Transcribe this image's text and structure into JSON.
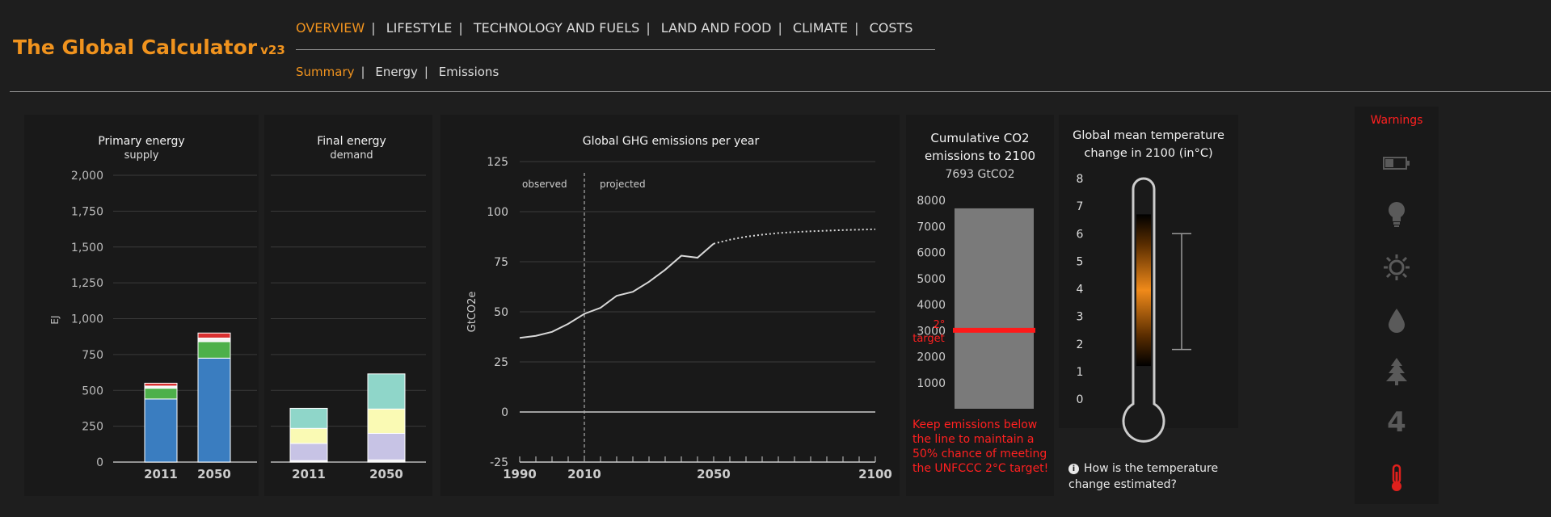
{
  "app": {
    "title": "The Global Calculator",
    "version": "v23"
  },
  "nav": {
    "tabs": [
      {
        "label": "OVERVIEW",
        "active": true
      },
      {
        "label": "LIFESTYLE",
        "active": false
      },
      {
        "label": "TECHNOLOGY AND FUELS",
        "active": false
      },
      {
        "label": "LAND AND FOOD",
        "active": false
      },
      {
        "label": "CLIMATE",
        "active": false
      },
      {
        "label": "COSTS",
        "active": false
      }
    ],
    "subtabs": [
      {
        "label": "Summary",
        "active": true
      },
      {
        "label": "Energy",
        "active": false
      },
      {
        "label": "Emissions",
        "active": false
      }
    ]
  },
  "colors": {
    "accent": "#f0931e",
    "warning": "#ff2020"
  },
  "charts": {
    "primary": {
      "title": "Primary energy",
      "subtitle": "supply",
      "ylabel": "EJ"
    },
    "final": {
      "title": "Final energy",
      "subtitle": "demand"
    },
    "ghg": {
      "title": "Global GHG emissions per year",
      "ylabel": "GtCO2e",
      "observed_label": "observed",
      "projected_label": "projected"
    },
    "cumulative": {
      "title_line1": "Cumulative CO2",
      "title_line2": "emissions to 2100",
      "value_text": "7693 GtCO2",
      "target_label_line1": "2°",
      "target_label_line2": "target"
    },
    "temperature": {
      "title_line1": "Global mean temperature",
      "title_line2": "change in 2100 (in°C)"
    }
  },
  "chart_data": [
    {
      "type": "bar",
      "title": "Primary energy",
      "subtitle": "supply",
      "ylabel": "EJ",
      "categories": [
        "2011",
        "2050"
      ],
      "ylim": [
        0,
        2000
      ],
      "yticks": [
        0,
        250,
        500,
        750,
        1000,
        1250,
        1500,
        1750,
        2000
      ],
      "yticklabels": [
        "0",
        "250",
        "500",
        "750",
        "1,000",
        "1,250",
        "1,500",
        "1,750",
        "2,000"
      ],
      "stacked": true,
      "series": [
        {
          "color": "#3a7dc0",
          "values": [
            440,
            725
          ]
        },
        {
          "color": "#4db04a",
          "values": [
            75,
            115
          ]
        },
        {
          "color": "#f4f4f4",
          "values": [
            15,
            25
          ]
        },
        {
          "color": "#d93030",
          "values": [
            20,
            35
          ]
        }
      ],
      "grid": true
    },
    {
      "type": "bar",
      "title": "Final energy",
      "subtitle": "demand",
      "categories": [
        "2011",
        "2050"
      ],
      "ylim": [
        0,
        2000
      ],
      "stacked": true,
      "series": [
        {
          "color": "#f4f4f4",
          "values": [
            10,
            15
          ]
        },
        {
          "color": "#c7c3e5",
          "values": [
            120,
            185
          ]
        },
        {
          "color": "#fafab4",
          "values": [
            105,
            170
          ]
        },
        {
          "color": "#8fd6c9",
          "values": [
            140,
            245
          ]
        }
      ],
      "grid": true
    },
    {
      "type": "line",
      "title": "Global GHG emissions per year",
      "ylabel": "GtCO2e",
      "xlim": [
        1990,
        2100
      ],
      "ylim": [
        -25,
        125
      ],
      "xticklabels": [
        "1990",
        "2010",
        "2050",
        "2100"
      ],
      "yticklabels": [
        "-25",
        "0",
        "25",
        "50",
        "75",
        "100",
        "125"
      ],
      "annotations": [
        "observed",
        "projected"
      ],
      "series": [
        {
          "style": "solid",
          "x": [
            1990,
            1995,
            2000,
            2005,
            2010,
            2015,
            2020,
            2025,
            2030,
            2035,
            2040,
            2045,
            2050
          ],
          "y": [
            37,
            38,
            40,
            44,
            49,
            52,
            58,
            60,
            65,
            71,
            78,
            77,
            84
          ]
        },
        {
          "style": "dotted",
          "x": [
            2050,
            2055,
            2060,
            2065,
            2070,
            2075,
            2080,
            2085,
            2090,
            2095,
            2100
          ],
          "y": [
            84,
            86,
            87.5,
            88.5,
            89.3,
            89.8,
            90.2,
            90.5,
            90.8,
            91,
            91.2
          ]
        }
      ],
      "grid": true
    },
    {
      "type": "bar",
      "title": "Cumulative CO2 emissions to 2100",
      "categories": [
        "2100"
      ],
      "values": [
        7693
      ],
      "value_label": "7693 GtCO2",
      "ylim": [
        0,
        8000
      ],
      "yticklabels": [
        "1000",
        "2000",
        "3000",
        "4000",
        "5000",
        "6000",
        "7000",
        "8000"
      ],
      "target": 3010,
      "target_label": "2° target"
    },
    {
      "type": "bar",
      "title": "Global mean temperature change in 2100 (in°C)",
      "ylim": [
        0,
        8
      ],
      "yticklabels": [
        "0",
        "1",
        "2",
        "3",
        "4",
        "5",
        "6",
        "7",
        "8"
      ],
      "range": [
        1.8,
        6
      ],
      "gradient_range": [
        1.2,
        6.7
      ]
    }
  ],
  "warnings": {
    "title": "Warnings",
    "icons": [
      {
        "name": "battery-icon",
        "color": "#5a5a5a"
      },
      {
        "name": "lightbulb-icon",
        "color": "#5a5a5a"
      },
      {
        "name": "sun-icon",
        "color": "#5a5a5a"
      },
      {
        "name": "drop-icon",
        "color": "#5a5a5a"
      },
      {
        "name": "tree-icon",
        "color": "#5a5a5a"
      },
      {
        "name": "number-4-icon",
        "label": "4",
        "color": "#5a5a5a"
      },
      {
        "name": "thermometer-icon",
        "color": "#e0201c"
      }
    ]
  },
  "notes": {
    "target_note": "Keep emissions below the line to maintain a 50% chance of meeting the UNFCCC 2°C target!",
    "temperature_question": "How is the temperature change estimated?"
  }
}
